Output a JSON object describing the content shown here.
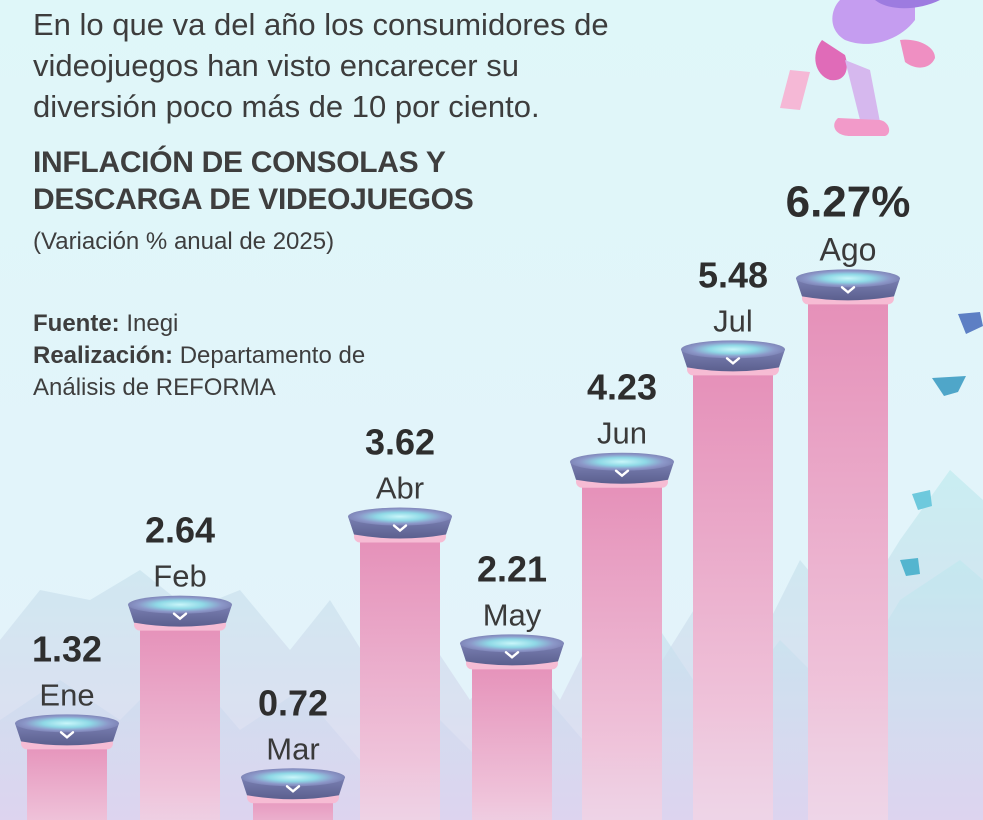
{
  "intro": "En lo que va del año los consumidores de videojuegos han visto encarecer su diversión poco más de 10 por ciento.",
  "chart_data": {
    "type": "bar",
    "title": "INFLACIÓN DE CONSOLAS Y DESCARGA DE VIDEOJUEGOS",
    "subtitle": "(Variación % anual de 2025)",
    "categories": [
      "Ene",
      "Feb",
      "Mar",
      "Abr",
      "May",
      "Jun",
      "Jul",
      "Ago"
    ],
    "values": [
      1.32,
      2.64,
      0.72,
      3.62,
      2.21,
      4.23,
      5.48,
      6.27
    ],
    "value_labels": [
      "1.32",
      "2.64",
      "0.72",
      "3.62",
      "2.21",
      "4.23",
      "5.48",
      "6.27%"
    ],
    "xlabel": "",
    "ylabel": "",
    "grid": false,
    "colors": {
      "pillar": "#e8a6c4",
      "pillar_light": "#f7d6e6",
      "pad": "#6a6f9e",
      "pad_top": "#9aa6d0",
      "glow": "#bff3f7",
      "rim": "#f6b8d0"
    }
  },
  "credits": {
    "source_label": "Fuente:",
    "source_value": "Inegi",
    "made_label": "Realización:",
    "made_value": "Departamento de Análisis de REFORMA"
  },
  "background": {
    "top_color": "#d9f6f8",
    "bottom_color": "#e6f3fa"
  }
}
